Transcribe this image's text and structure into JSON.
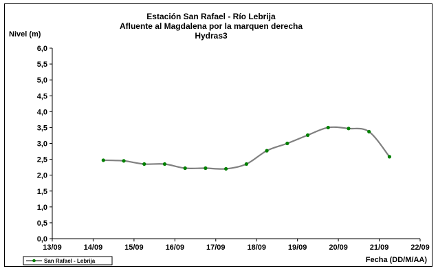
{
  "chart_data": {
    "type": "line",
    "title": [
      "Estación San Rafael - Río Lebrija",
      "Afluente al Magdalena por la marquen derecha",
      "Hydras3"
    ],
    "ylabel": "Nivel (m)",
    "xlabel": "Fecha (DD/M/AA)",
    "x_ticks": [
      "13/09",
      "14/09",
      "15/09",
      "16/09",
      "17/09",
      "18/09",
      "19/09",
      "20/09",
      "21/09",
      "22/09"
    ],
    "y_ticks": [
      "0,0",
      "0,5",
      "1,0",
      "1,5",
      "2,0",
      "2,5",
      "3,0",
      "3,5",
      "4,0",
      "4,5",
      "5,0",
      "5,5",
      "6,0"
    ],
    "ylim": [
      0,
      6
    ],
    "xlim": [
      "13/09",
      "22/09"
    ],
    "grid": false,
    "legend_position": "bottom-left",
    "series": [
      {
        "name": "San Rafael - Lebrija",
        "color": "#808080",
        "marker_color": "#008000",
        "x": [
          "14/09 06:00",
          "14/09 18:00",
          "15/09 06:00",
          "15/09 18:00",
          "16/09 06:00",
          "16/09 18:00",
          "17/09 06:00",
          "17/09 18:00",
          "18/09 06:00",
          "18/09 18:00",
          "19/09 06:00",
          "19/09 18:00",
          "20/09 06:00",
          "20/09 18:00",
          "21/09 06:00"
        ],
        "y": [
          2.47,
          2.45,
          2.35,
          2.35,
          2.22,
          2.22,
          2.2,
          2.35,
          2.77,
          3.0,
          3.26,
          3.5,
          3.47,
          3.37,
          2.58
        ]
      }
    ]
  }
}
